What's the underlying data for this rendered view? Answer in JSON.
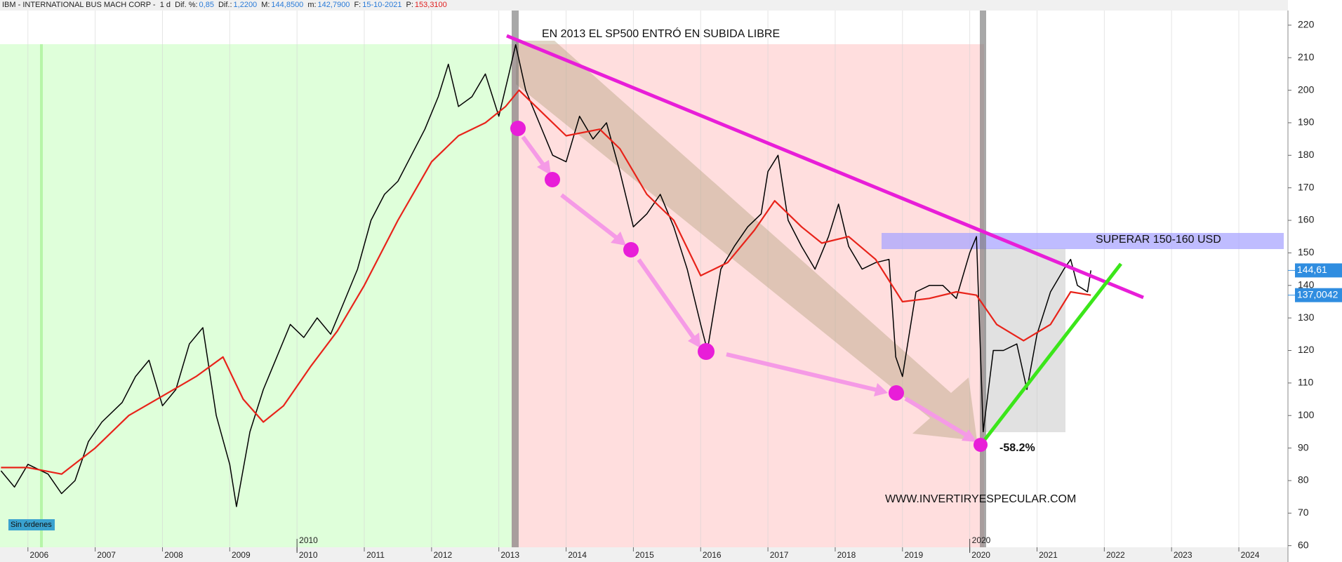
{
  "chart_data": {
    "type": "line",
    "header": {
      "symbol": "IBM - INTERNATIONAL BUS MACH CORP -",
      "period": "1 d",
      "fields": [
        {
          "label": "Dif. %:",
          "value": "0,85"
        },
        {
          "label": "Dif.:",
          "value": "1,2200"
        },
        {
          "label": "M:",
          "value": "144,8500"
        },
        {
          "label": "m:",
          "value": "142,7900"
        },
        {
          "label": "F:",
          "value": "15-10-2021"
        },
        {
          "label": "P:",
          "value": "153,3100"
        }
      ]
    },
    "annotations": {
      "top": "EN 2013 EL SP500 ENTRÓ EN SUBIDA LIBRE",
      "band": "SUPERAR 150-160 USD",
      "drop": "-58.2%",
      "site": "WWW.INVERTIRYESPECULAR.COM",
      "orders": "Sin órdenes"
    },
    "xlim": [
      2005.585,
      2024.73
    ],
    "xticks": [
      2006,
      2007,
      2008,
      2009,
      2010,
      2011,
      2012,
      2013,
      2014,
      2015,
      2016,
      2017,
      2018,
      2019,
      2020,
      2021,
      2022,
      2023,
      2024
    ],
    "xticks_major": [
      2010,
      2020
    ],
    "ylim": [
      59.5,
      224.5
    ],
    "yticks": [
      60,
      70,
      80,
      90,
      100,
      110,
      120,
      130,
      140,
      150,
      160,
      170,
      180,
      190,
      200,
      210,
      220
    ],
    "grid": false,
    "price_badges": [
      {
        "value": 144.61,
        "label": "144,61"
      },
      {
        "value": 137.0042,
        "label": "137,0042"
      }
    ],
    "series": [
      {
        "name": "IBM",
        "color": "#000000",
        "x": [
          2005.6,
          2005.8,
          2006.0,
          2006.3,
          2006.5,
          2006.7,
          2006.9,
          2007.1,
          2007.4,
          2007.6,
          2007.8,
          2008.0,
          2008.2,
          2008.4,
          2008.6,
          2008.8,
          2009.0,
          2009.1,
          2009.3,
          2009.5,
          2009.7,
          2009.9,
          2010.1,
          2010.3,
          2010.5,
          2010.7,
          2010.9,
          2011.1,
          2011.3,
          2011.5,
          2011.7,
          2011.9,
          2012.1,
          2012.25,
          2012.4,
          2012.6,
          2012.8,
          2013.0,
          2013.15,
          2013.25,
          2013.4,
          2013.6,
          2013.8,
          2014.0,
          2014.2,
          2014.4,
          2014.6,
          2014.8,
          2015.0,
          2015.2,
          2015.4,
          2015.6,
          2015.8,
          2016.0,
          2016.1,
          2016.3,
          2016.5,
          2016.7,
          2016.9,
          2017.0,
          2017.15,
          2017.3,
          2017.5,
          2017.7,
          2017.9,
          2018.05,
          2018.2,
          2018.4,
          2018.6,
          2018.8,
          2018.9,
          2019.0,
          2019.2,
          2019.4,
          2019.6,
          2019.8,
          2020.0,
          2020.1,
          2020.2,
          2020.35,
          2020.5,
          2020.7,
          2020.85,
          2021.0,
          2021.2,
          2021.4,
          2021.5,
          2021.6,
          2021.75,
          2021.8
        ],
        "values": [
          83,
          78,
          85,
          82,
          76,
          80,
          92,
          98,
          104,
          112,
          117,
          103,
          108,
          122,
          127,
          100,
          85,
          72,
          95,
          108,
          118,
          128,
          124,
          130,
          125,
          135,
          145,
          160,
          168,
          172,
          180,
          188,
          198,
          208,
          195,
          198,
          205,
          192,
          205,
          214,
          200,
          190,
          180,
          178,
          192,
          185,
          190,
          175,
          158,
          162,
          168,
          158,
          145,
          128,
          120,
          145,
          152,
          158,
          162,
          175,
          180,
          160,
          152,
          145,
          155,
          165,
          152,
          145,
          147,
          148,
          118,
          112,
          138,
          140,
          140,
          136,
          150,
          155,
          95,
          120,
          120,
          122,
          108,
          125,
          138,
          145,
          148,
          140,
          138,
          144.61
        ]
      },
      {
        "name": "MA",
        "color": "#e8231a",
        "x": [
          2005.6,
          2006.0,
          2006.5,
          2007.0,
          2007.5,
          2008.0,
          2008.5,
          2008.9,
          2009.2,
          2009.5,
          2009.8,
          2010.2,
          2010.6,
          2011.0,
          2011.5,
          2012.0,
          2012.4,
          2012.8,
          2013.1,
          2013.3,
          2013.7,
          2014.0,
          2014.5,
          2014.8,
          2015.2,
          2015.6,
          2016.0,
          2016.4,
          2016.8,
          2017.1,
          2017.5,
          2017.8,
          2018.2,
          2018.6,
          2019.0,
          2019.4,
          2019.8,
          2020.1,
          2020.4,
          2020.8,
          2021.2,
          2021.5,
          2021.8
        ],
        "values": [
          84,
          84,
          82,
          90,
          100,
          106,
          112,
          118,
          105,
          98,
          103,
          115,
          126,
          140,
          160,
          178,
          186,
          190,
          195,
          200,
          192,
          186,
          188,
          182,
          168,
          160,
          143,
          147,
          157,
          166,
          158,
          153,
          155,
          148,
          135,
          136,
          138,
          137,
          128,
          123,
          128,
          138,
          137.0042
        ]
      }
    ]
  }
}
